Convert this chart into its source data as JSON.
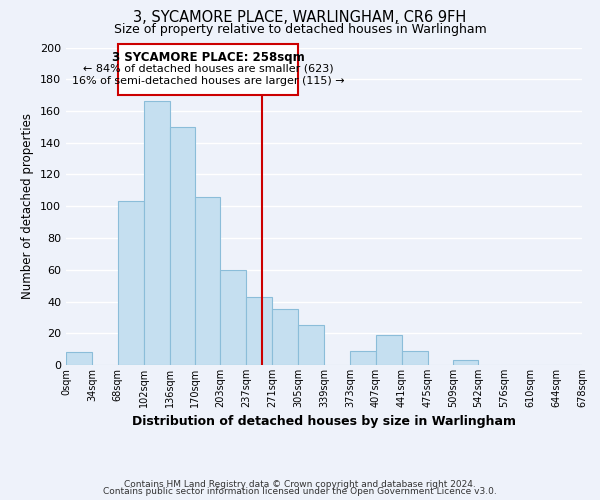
{
  "title": "3, SYCAMORE PLACE, WARLINGHAM, CR6 9FH",
  "subtitle": "Size of property relative to detached houses in Warlingham",
  "bar_edges": [
    0,
    34,
    68,
    102,
    136,
    170,
    203,
    237,
    271,
    305,
    339,
    373,
    407,
    441,
    475,
    509,
    542,
    576,
    610,
    644,
    678
  ],
  "bar_heights": [
    8,
    0,
    103,
    166,
    150,
    106,
    60,
    43,
    35,
    25,
    0,
    9,
    19,
    9,
    0,
    3,
    0,
    0,
    0,
    0
  ],
  "bar_color": "#c5dff0",
  "bar_edgecolor": "#8bbdd9",
  "property_line_x": 258,
  "property_line_color": "#cc0000",
  "xlabel": "Distribution of detached houses by size in Warlingham",
  "ylabel": "Number of detached properties",
  "ylim": [
    0,
    200
  ],
  "yticks": [
    0,
    20,
    40,
    60,
    80,
    100,
    120,
    140,
    160,
    180,
    200
  ],
  "x_tick_labels": [
    "0sqm",
    "34sqm",
    "68sqm",
    "102sqm",
    "136sqm",
    "170sqm",
    "203sqm",
    "237sqm",
    "271sqm",
    "305sqm",
    "339sqm",
    "373sqm",
    "407sqm",
    "441sqm",
    "475sqm",
    "509sqm",
    "542sqm",
    "576sqm",
    "610sqm",
    "644sqm",
    "678sqm"
  ],
  "annotation_title": "3 SYCAMORE PLACE: 258sqm",
  "annotation_line1": "← 84% of detached houses are smaller (623)",
  "annotation_line2": "16% of semi-detached houses are larger (115) →",
  "annotation_box_facecolor": "#ffffff",
  "annotation_box_edgecolor": "#cc0000",
  "footer1": "Contains HM Land Registry data © Crown copyright and database right 2024.",
  "footer2": "Contains public sector information licensed under the Open Government Licence v3.0.",
  "background_color": "#eef2fa",
  "grid_color": "#ffffff"
}
